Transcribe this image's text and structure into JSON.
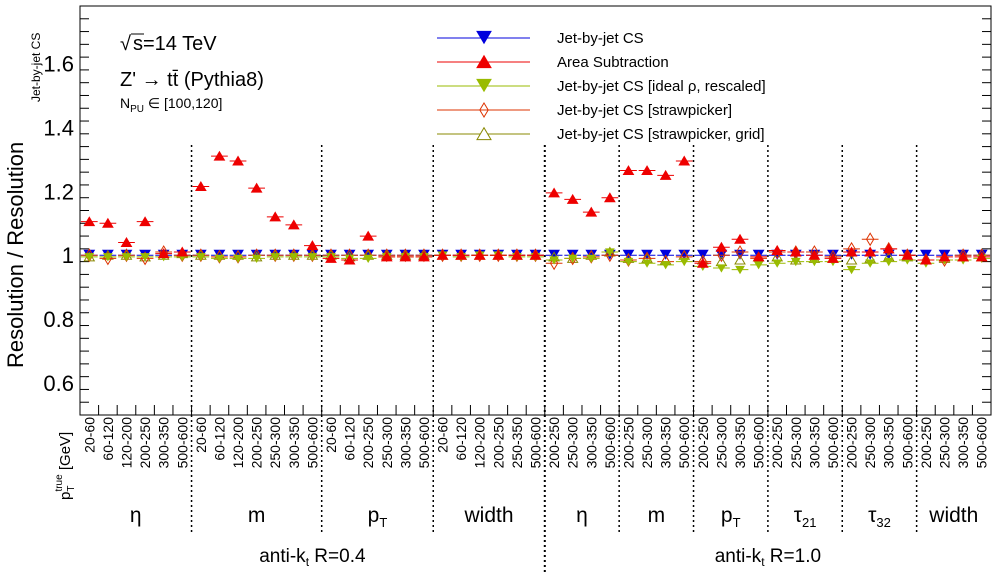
{
  "chart_data": {
    "type": "scatter",
    "ylabel": "Resolution / Resolution",
    "ylabel_sub": "Jet-by-jet CS",
    "ylim": [
      0.5,
      1.78
    ],
    "yticks": [
      "0.6",
      "0.8",
      "1",
      "1.2",
      "1.4",
      "1.6"
    ],
    "xaxis_title": "p",
    "xaxis_title_sup": "true",
    "xaxis_title_sub": "T",
    "xaxis_title_unit": " [GeV]",
    "annotations": {
      "sqrt_s": "s=14 TeV",
      "process": "Z' → tt̄ (Pythia8)",
      "npu_label": "N",
      "npu_sub": "PU",
      "npu_range": " ∈ [100,120]"
    },
    "legend": [
      {
        "label": "Jet-by-jet CS",
        "color": "#0000dd",
        "marker": "triangle-down-filled"
      },
      {
        "label": "Area Subtraction",
        "color": "#ee0000",
        "marker": "triangle-up-filled"
      },
      {
        "label": "Jet-by-jet CS [ideal   ρ, rescaled]",
        "color": "#99bb00",
        "marker": "triangle-down-filled"
      },
      {
        "label": "Jet-by-jet CS [strawpicker]",
        "color": "#dd3300",
        "marker": "diamond-open"
      },
      {
        "label": "Jet-by-jet CS [strawpicker, grid]",
        "color": "#888800",
        "marker": "triangle-up-open"
      }
    ],
    "groups": [
      {
        "label": "η",
        "sub": "",
        "bins": [
          "20-60",
          "60-120",
          "120-200",
          "200-250",
          "300-350",
          "500-600"
        ],
        "area": [
          1.105,
          1.1,
          1.04,
          1.105,
          1.005,
          1.01
        ],
        "ideal": [
          0.995,
          0.995,
          0.995,
          0.995,
          0.995,
          0.995
        ],
        "straw": [
          1.0,
          0.99,
          1.0,
          0.99,
          1.01,
          1.0
        ],
        "grid": [
          0.995,
          1.0,
          1.0,
          0.995,
          1.0,
          1.005
        ]
      },
      {
        "label": "m",
        "sub": "",
        "bins": [
          "20-60",
          "60-120",
          "120-200",
          "200-250",
          "250-300",
          "300-350",
          "500-600"
        ],
        "area": [
          1.215,
          1.31,
          1.295,
          1.21,
          1.12,
          1.095,
          1.03
        ],
        "ideal": [
          0.995,
          0.99,
          0.99,
          0.99,
          0.995,
          0.995,
          0.995
        ],
        "straw": [
          1.0,
          0.995,
          0.995,
          1.0,
          1.0,
          1.0,
          1.0
        ],
        "grid": [
          1.0,
          1.0,
          1.0,
          0.995,
          1.0,
          1.0,
          1.0
        ]
      },
      {
        "label": "p",
        "sub": "T",
        "bins": [
          "20-60",
          "60-120",
          "200-250",
          "250-300",
          "300-350",
          "500-600"
        ],
        "area": [
          0.99,
          0.985,
          1.06,
          0.995,
          0.995,
          0.995
        ],
        "ideal": [
          0.995,
          0.99,
          0.99,
          0.995,
          0.995,
          0.995
        ],
        "straw": [
          1.0,
          1.0,
          1.0,
          1.0,
          1.0,
          1.0
        ],
        "grid": [
          1.0,
          0.995,
          1.0,
          1.0,
          1.0,
          1.0
        ]
      },
      {
        "label": "width",
        "sub": "",
        "bins": [
          "20-60",
          "60-120",
          "120-200",
          "200-250",
          "250-350",
          "500-600"
        ],
        "area": [
          1.0,
          1.0,
          1.0,
          1.0,
          1.0,
          1.0
        ],
        "ideal": [
          1.0,
          0.995,
          1.0,
          1.0,
          0.995,
          0.995
        ],
        "straw": [
          1.0,
          1.0,
          1.0,
          1.0,
          1.0,
          1.0
        ],
        "grid": [
          1.0,
          1.0,
          1.0,
          1.0,
          1.0,
          1.0
        ]
      },
      {
        "label": "η",
        "sub": "",
        "bins": [
          "200-250",
          "250-300",
          "300-350",
          "500-600"
        ],
        "area": [
          1.195,
          1.175,
          1.135,
          1.18
        ],
        "ideal": [
          0.985,
          0.99,
          0.99,
          1.01
        ],
        "straw": [
          0.975,
          0.99,
          0.995,
          1.0
        ],
        "grid": [
          0.995,
          0.99,
          1.0,
          1.01
        ]
      },
      {
        "label": "m",
        "sub": "",
        "bins": [
          "200-250",
          "250-300",
          "300-350",
          "500-600"
        ],
        "area": [
          1.265,
          1.265,
          1.25,
          1.295
        ],
        "ideal": [
          0.98,
          0.975,
          0.97,
          0.98
        ],
        "straw": [
          0.985,
          0.99,
          0.98,
          0.995
        ],
        "grid": [
          0.99,
          0.99,
          0.985,
          1.0
        ]
      },
      {
        "label": "p",
        "sub": "T",
        "bins": [
          "200-250",
          "250-300",
          "300-350",
          "500-600"
        ],
        "area": [
          0.975,
          1.025,
          1.05,
          0.995
        ],
        "ideal": [
          0.965,
          0.96,
          0.955,
          0.97
        ],
        "straw": [
          0.98,
          1.0,
          1.01,
          0.99
        ],
        "grid": [
          0.985,
          0.98,
          0.985,
          0.995
        ]
      },
      {
        "label": "τ",
        "sub": "21",
        "bins": [
          "200-250",
          "250-300",
          "300-350",
          "500-600"
        ],
        "area": [
          1.015,
          1.01,
          1.0,
          0.99
        ],
        "ideal": [
          0.975,
          0.98,
          0.98,
          0.98
        ],
        "straw": [
          1.01,
          1.01,
          1.01,
          0.995
        ],
        "grid": [
          0.995,
          0.985,
          0.99,
          0.99
        ]
      },
      {
        "label": "τ",
        "sub": "32",
        "bins": [
          "200-250",
          "250-300",
          "300-350",
          "500-600"
        ],
        "area": [
          1.01,
          1.01,
          1.02,
          1.0
        ],
        "ideal": [
          0.955,
          0.975,
          0.98,
          0.985
        ],
        "straw": [
          1.02,
          1.05,
          1.02,
          1.0
        ],
        "grid": [
          0.985,
          0.99,
          0.995,
          0.995
        ]
      },
      {
        "label": "width",
        "sub": "",
        "bins": [
          "200-250",
          "250-300",
          "300-350",
          "500-600"
        ],
        "area": [
          0.985,
          0.995,
          0.995,
          0.995
        ],
        "ideal": [
          0.975,
          0.985,
          0.985,
          0.99
        ],
        "straw": [
          0.985,
          0.985,
          1.0,
          1.0
        ],
        "grid": [
          0.985,
          0.99,
          0.995,
          0.995
        ]
      }
    ],
    "jet_labels": [
      {
        "prefix": "anti-k",
        "sub": "t",
        "suffix": " R=0.4"
      },
      {
        "prefix": "anti-k",
        "sub": "t",
        "suffix": " R=1.0"
      }
    ]
  }
}
